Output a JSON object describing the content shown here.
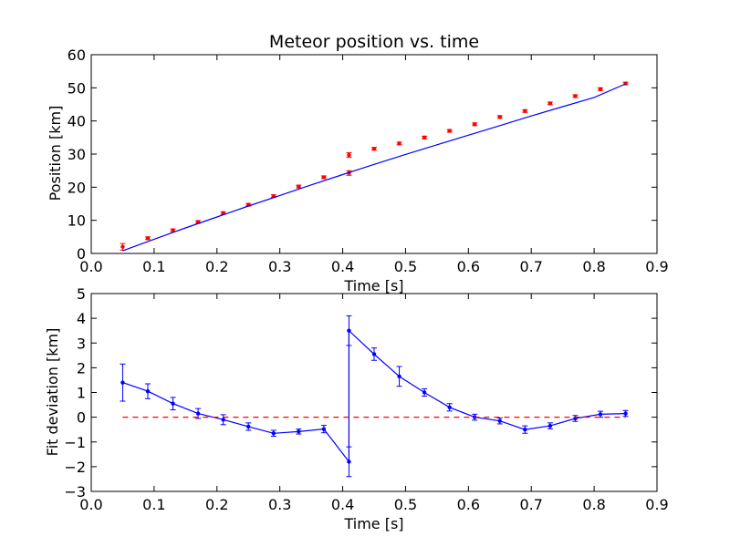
{
  "chart_data": [
    {
      "type": "scatter",
      "title": "Meteor position vs. time",
      "xlabel": "Time [s]",
      "ylabel": "Position [km]",
      "xlim": [
        0.0,
        0.9
      ],
      "ylim": [
        0,
        60
      ],
      "xticks": [
        "0.0",
        "0.1",
        "0.2",
        "0.3",
        "0.4",
        "0.5",
        "0.6",
        "0.7",
        "0.8",
        "0.9"
      ],
      "yticks": [
        "0",
        "10",
        "20",
        "30",
        "40",
        "50",
        "60"
      ],
      "grid": false,
      "series": [
        {
          "kind": "points-with-errorbars",
          "color": "#ff0000",
          "x": [
            0.05,
            0.09,
            0.13,
            0.17,
            0.21,
            0.25,
            0.29,
            0.33,
            0.37,
            0.41,
            0.41,
            0.45,
            0.49,
            0.53,
            0.57,
            0.61,
            0.65,
            0.69,
            0.73,
            0.77,
            0.81,
            0.85
          ],
          "y": [
            2.0,
            4.6,
            7.0,
            9.5,
            12.2,
            14.7,
            17.3,
            20.2,
            23.0,
            29.7,
            24.3,
            31.6,
            33.2,
            35.0,
            37.0,
            39.0,
            41.2,
            43.0,
            45.3,
            47.5,
            49.6,
            51.3
          ],
          "err": [
            1.0,
            0.4,
            0.4,
            0.4,
            0.4,
            0.4,
            0.4,
            0.4,
            0.4,
            0.7,
            0.7,
            0.4,
            0.4,
            0.4,
            0.4,
            0.4,
            0.4,
            0.4,
            0.4,
            0.4,
            0.4,
            0.4
          ]
        },
        {
          "kind": "fit-line",
          "color": "#0000ff",
          "x": [
            0.05,
            0.1,
            0.15,
            0.2,
            0.25,
            0.3,
            0.35,
            0.4,
            0.45,
            0.5,
            0.55,
            0.6,
            0.65,
            0.7,
            0.75,
            0.8,
            0.85
          ],
          "y": [
            0.8,
            4.3,
            7.7,
            11.0,
            14.3,
            17.5,
            20.7,
            23.8,
            26.9,
            29.9,
            32.8,
            35.7,
            38.6,
            41.5,
            44.3,
            47.1,
            51.2
          ]
        }
      ]
    },
    {
      "type": "line",
      "title": "",
      "xlabel": "Time [s]",
      "ylabel": "Fit deviation [km]",
      "xlim": [
        0.0,
        0.9
      ],
      "ylim": [
        -3,
        5
      ],
      "xticks": [
        "0.0",
        "0.1",
        "0.2",
        "0.3",
        "0.4",
        "0.5",
        "0.6",
        "0.7",
        "0.8",
        "0.9"
      ],
      "yticks": [
        "−3",
        "−2",
        "−1",
        "0",
        "1",
        "2",
        "3",
        "4",
        "5"
      ],
      "grid": false,
      "series": [
        {
          "kind": "line-with-errorbars",
          "color": "#0000ff",
          "x": [
            0.05,
            0.09,
            0.13,
            0.17,
            0.21,
            0.25,
            0.29,
            0.33,
            0.37,
            0.41,
            0.41,
            0.45,
            0.49,
            0.53,
            0.57,
            0.61,
            0.65,
            0.69,
            0.73,
            0.77,
            0.81,
            0.85
          ],
          "y": [
            1.4,
            1.05,
            0.55,
            0.15,
            -0.1,
            -0.38,
            -0.65,
            -0.58,
            -0.48,
            -1.8,
            3.5,
            2.55,
            1.65,
            1.0,
            0.4,
            0.0,
            -0.15,
            -0.5,
            -0.35,
            -0.05,
            0.12,
            0.15
          ],
          "err": [
            0.75,
            0.3,
            0.25,
            0.2,
            0.2,
            0.15,
            0.12,
            0.1,
            0.15,
            0.6,
            0.6,
            0.25,
            0.4,
            0.15,
            0.15,
            0.12,
            0.12,
            0.15,
            0.12,
            0.12,
            0.12,
            0.12
          ]
        },
        {
          "kind": "reference-line",
          "color": "#ff0000",
          "x": [
            0.05,
            0.85
          ],
          "y": [
            0,
            0
          ]
        }
      ]
    }
  ]
}
